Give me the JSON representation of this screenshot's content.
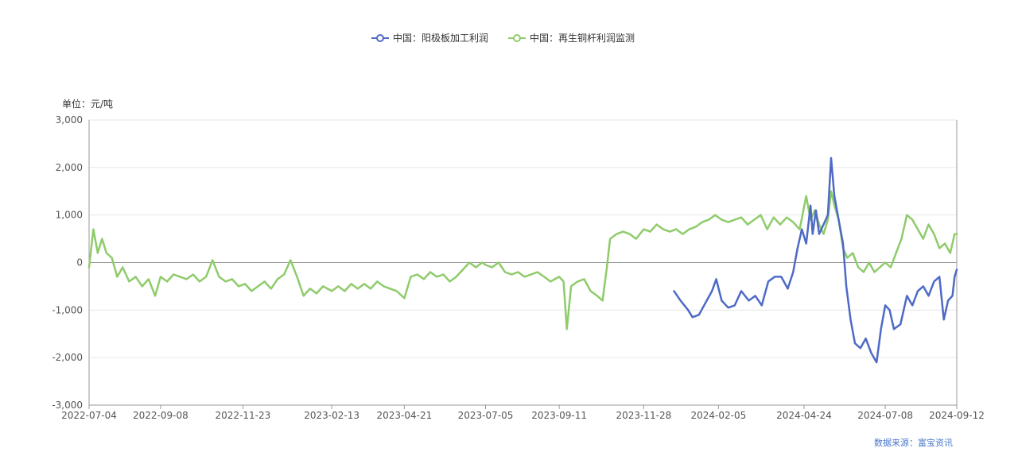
{
  "chart_data": {
    "type": "line",
    "unit_label": "单位：元/吨",
    "source": "数据来源：富宝资讯",
    "ylim": [
      -3000,
      3000
    ],
    "y_ticks": [
      3000,
      2000,
      1000,
      0,
      -1000,
      -2000,
      -3000
    ],
    "y_tick_labels": [
      "3,000",
      "2,000",
      "1,000",
      "0",
      "-1,000",
      "-2,000",
      "-3,000"
    ],
    "x_range": [
      "2022-07-04",
      "2024-09-12"
    ],
    "x_ticks": [
      "2022-07-04",
      "2022-09-08",
      "2022-11-23",
      "2023-02-13",
      "2023-04-21",
      "2023-07-05",
      "2023-09-11",
      "2023-11-28",
      "2024-02-05",
      "2024-04-24",
      "2024-07-08",
      "2024-09-12"
    ],
    "grid": true,
    "legend_position": "top-center",
    "series": [
      {
        "name": "中国：阳极板加工利润",
        "color": "#4e6ac6",
        "points": [
          [
            "2023-12-26",
            -600
          ],
          [
            "2024-01-01",
            -800
          ],
          [
            "2024-01-08",
            -1000
          ],
          [
            "2024-01-12",
            -1150
          ],
          [
            "2024-01-18",
            -1100
          ],
          [
            "2024-01-24",
            -850
          ],
          [
            "2024-01-30",
            -600
          ],
          [
            "2024-02-03",
            -350
          ],
          [
            "2024-02-08",
            -800
          ],
          [
            "2024-02-14",
            -950
          ],
          [
            "2024-02-20",
            -900
          ],
          [
            "2024-02-26",
            -600
          ],
          [
            "2024-03-04",
            -800
          ],
          [
            "2024-03-10",
            -700
          ],
          [
            "2024-03-16",
            -900
          ],
          [
            "2024-03-22",
            -400
          ],
          [
            "2024-03-28",
            -300
          ],
          [
            "2024-04-03",
            -300
          ],
          [
            "2024-04-09",
            -550
          ],
          [
            "2024-04-14",
            -200
          ],
          [
            "2024-04-18",
            300
          ],
          [
            "2024-04-22",
            700
          ],
          [
            "2024-04-26",
            400
          ],
          [
            "2024-04-30",
            1200
          ],
          [
            "2024-05-02",
            600
          ],
          [
            "2024-05-05",
            1100
          ],
          [
            "2024-05-08",
            600
          ],
          [
            "2024-05-12",
            800
          ],
          [
            "2024-05-16",
            1000
          ],
          [
            "2024-05-19",
            2200
          ],
          [
            "2024-05-22",
            1400
          ],
          [
            "2024-05-26",
            900
          ],
          [
            "2024-05-30",
            400
          ],
          [
            "2024-06-02",
            -500
          ],
          [
            "2024-06-06",
            -1200
          ],
          [
            "2024-06-10",
            -1700
          ],
          [
            "2024-06-15",
            -1800
          ],
          [
            "2024-06-20",
            -1600
          ],
          [
            "2024-06-25",
            -1900
          ],
          [
            "2024-06-30",
            -2100
          ],
          [
            "2024-07-04",
            -1400
          ],
          [
            "2024-07-08",
            -900
          ],
          [
            "2024-07-12",
            -1000
          ],
          [
            "2024-07-16",
            -1400
          ],
          [
            "2024-07-22",
            -1300
          ],
          [
            "2024-07-28",
            -700
          ],
          [
            "2024-08-02",
            -900
          ],
          [
            "2024-08-07",
            -600
          ],
          [
            "2024-08-12",
            -500
          ],
          [
            "2024-08-17",
            -700
          ],
          [
            "2024-08-22",
            -400
          ],
          [
            "2024-08-27",
            -300
          ],
          [
            "2024-08-31",
            -1200
          ],
          [
            "2024-09-04",
            -800
          ],
          [
            "2024-09-08",
            -700
          ],
          [
            "2024-09-10",
            -300
          ],
          [
            "2024-09-12",
            -150
          ]
        ]
      },
      {
        "name": "中国：再生铜杆利润监测",
        "color": "#8fcb6b",
        "points": [
          [
            "2022-07-04",
            -100
          ],
          [
            "2022-07-08",
            700
          ],
          [
            "2022-07-12",
            200
          ],
          [
            "2022-07-16",
            500
          ],
          [
            "2022-07-20",
            200
          ],
          [
            "2022-07-25",
            100
          ],
          [
            "2022-07-30",
            -300
          ],
          [
            "2022-08-04",
            -100
          ],
          [
            "2022-08-10",
            -400
          ],
          [
            "2022-08-16",
            -300
          ],
          [
            "2022-08-22",
            -500
          ],
          [
            "2022-08-28",
            -350
          ],
          [
            "2022-09-03",
            -700
          ],
          [
            "2022-09-08",
            -300
          ],
          [
            "2022-09-14",
            -400
          ],
          [
            "2022-09-20",
            -250
          ],
          [
            "2022-09-26",
            -300
          ],
          [
            "2022-10-02",
            -350
          ],
          [
            "2022-10-08",
            -250
          ],
          [
            "2022-10-14",
            -400
          ],
          [
            "2022-10-20",
            -300
          ],
          [
            "2022-10-26",
            50
          ],
          [
            "2022-11-01",
            -300
          ],
          [
            "2022-11-07",
            -400
          ],
          [
            "2022-11-13",
            -350
          ],
          [
            "2022-11-19",
            -500
          ],
          [
            "2022-11-25",
            -450
          ],
          [
            "2022-12-01",
            -600
          ],
          [
            "2022-12-07",
            -500
          ],
          [
            "2022-12-13",
            -400
          ],
          [
            "2022-12-19",
            -550
          ],
          [
            "2022-12-25",
            -350
          ],
          [
            "2022-12-31",
            -250
          ],
          [
            "2023-01-06",
            50
          ],
          [
            "2023-01-12",
            -300
          ],
          [
            "2023-01-18",
            -700
          ],
          [
            "2023-01-24",
            -550
          ],
          [
            "2023-01-30",
            -650
          ],
          [
            "2023-02-05",
            -500
          ],
          [
            "2023-02-13",
            -600
          ],
          [
            "2023-02-19",
            -500
          ],
          [
            "2023-02-25",
            -600
          ],
          [
            "2023-03-03",
            -450
          ],
          [
            "2023-03-09",
            -550
          ],
          [
            "2023-03-15",
            -450
          ],
          [
            "2023-03-21",
            -550
          ],
          [
            "2023-03-27",
            -400
          ],
          [
            "2023-04-02",
            -500
          ],
          [
            "2023-04-08",
            -550
          ],
          [
            "2023-04-14",
            -600
          ],
          [
            "2023-04-21",
            -750
          ],
          [
            "2023-04-27",
            -300
          ],
          [
            "2023-05-03",
            -250
          ],
          [
            "2023-05-09",
            -350
          ],
          [
            "2023-05-15",
            -200
          ],
          [
            "2023-05-21",
            -300
          ],
          [
            "2023-05-27",
            -250
          ],
          [
            "2023-06-02",
            -400
          ],
          [
            "2023-06-08",
            -300
          ],
          [
            "2023-06-14",
            -150
          ],
          [
            "2023-06-20",
            0
          ],
          [
            "2023-06-26",
            -100
          ],
          [
            "2023-07-02",
            0
          ],
          [
            "2023-07-05",
            -50
          ],
          [
            "2023-07-11",
            -100
          ],
          [
            "2023-07-17",
            0
          ],
          [
            "2023-07-23",
            -200
          ],
          [
            "2023-07-29",
            -250
          ],
          [
            "2023-08-04",
            -200
          ],
          [
            "2023-08-10",
            -300
          ],
          [
            "2023-08-16",
            -250
          ],
          [
            "2023-08-22",
            -200
          ],
          [
            "2023-08-28",
            -300
          ],
          [
            "2023-09-03",
            -400
          ],
          [
            "2023-09-11",
            -300
          ],
          [
            "2023-09-15",
            -400
          ],
          [
            "2023-09-18",
            -1400
          ],
          [
            "2023-09-22",
            -500
          ],
          [
            "2023-09-28",
            -400
          ],
          [
            "2023-10-04",
            -350
          ],
          [
            "2023-10-10",
            -600
          ],
          [
            "2023-10-16",
            -700
          ],
          [
            "2023-10-21",
            -800
          ],
          [
            "2023-10-25",
            -100
          ],
          [
            "2023-10-28",
            500
          ],
          [
            "2023-11-03",
            600
          ],
          [
            "2023-11-09",
            650
          ],
          [
            "2023-11-15",
            600
          ],
          [
            "2023-11-21",
            500
          ],
          [
            "2023-11-28",
            700
          ],
          [
            "2023-12-04",
            650
          ],
          [
            "2023-12-10",
            800
          ],
          [
            "2023-12-16",
            700
          ],
          [
            "2023-12-22",
            650
          ],
          [
            "2023-12-28",
            700
          ],
          [
            "2024-01-03",
            600
          ],
          [
            "2024-01-09",
            700
          ],
          [
            "2024-01-15",
            750
          ],
          [
            "2024-01-21",
            850
          ],
          [
            "2024-01-27",
            900
          ],
          [
            "2024-02-02",
            1000
          ],
          [
            "2024-02-08",
            900
          ],
          [
            "2024-02-14",
            850
          ],
          [
            "2024-02-20",
            900
          ],
          [
            "2024-02-26",
            950
          ],
          [
            "2024-03-03",
            800
          ],
          [
            "2024-03-09",
            900
          ],
          [
            "2024-03-15",
            1000
          ],
          [
            "2024-03-21",
            700
          ],
          [
            "2024-03-27",
            950
          ],
          [
            "2024-04-02",
            800
          ],
          [
            "2024-04-08",
            950
          ],
          [
            "2024-04-14",
            850
          ],
          [
            "2024-04-20",
            700
          ],
          [
            "2024-04-26",
            1400
          ],
          [
            "2024-04-30",
            900
          ],
          [
            "2024-05-04",
            1100
          ],
          [
            "2024-05-08",
            800
          ],
          [
            "2024-05-12",
            600
          ],
          [
            "2024-05-16",
            900
          ],
          [
            "2024-05-19",
            1500
          ],
          [
            "2024-05-22",
            1200
          ],
          [
            "2024-05-26",
            900
          ],
          [
            "2024-05-30",
            300
          ],
          [
            "2024-06-03",
            100
          ],
          [
            "2024-06-08",
            200
          ],
          [
            "2024-06-13",
            -100
          ],
          [
            "2024-06-18",
            -200
          ],
          [
            "2024-06-23",
            0
          ],
          [
            "2024-06-28",
            -200
          ],
          [
            "2024-07-03",
            -100
          ],
          [
            "2024-07-08",
            0
          ],
          [
            "2024-07-13",
            -100
          ],
          [
            "2024-07-18",
            200
          ],
          [
            "2024-07-23",
            500
          ],
          [
            "2024-07-28",
            1000
          ],
          [
            "2024-08-02",
            900
          ],
          [
            "2024-08-07",
            700
          ],
          [
            "2024-08-12",
            500
          ],
          [
            "2024-08-17",
            800
          ],
          [
            "2024-08-22",
            600
          ],
          [
            "2024-08-27",
            300
          ],
          [
            "2024-09-01",
            400
          ],
          [
            "2024-09-06",
            200
          ],
          [
            "2024-09-10",
            600
          ],
          [
            "2024-09-12",
            600
          ]
        ]
      }
    ]
  }
}
